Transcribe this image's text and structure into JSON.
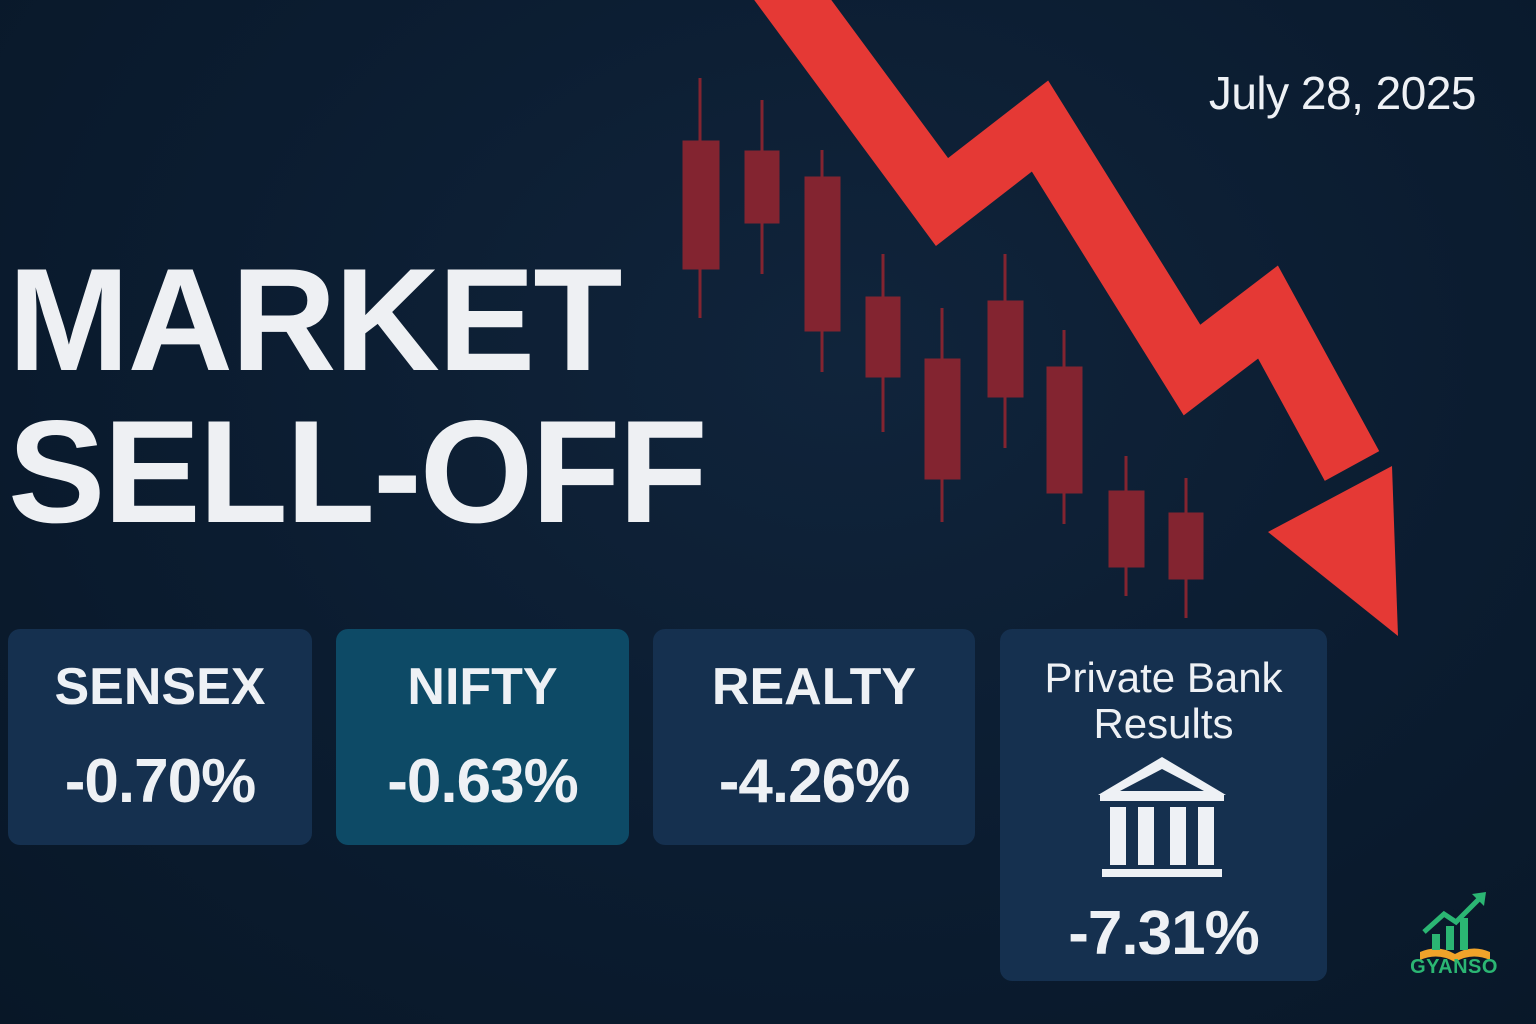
{
  "date": "July 28, 2025",
  "headline": {
    "line1": "MARKET",
    "line2": "SELL-OFF"
  },
  "cards": [
    {
      "label": "SENSEX",
      "value": "-0.70%"
    },
    {
      "label": "NIFTY",
      "value": "-0.63%"
    },
    {
      "label": "REALTY",
      "value": "-4.26%"
    },
    {
      "label_line1": "Private Bank",
      "label_line2": "Results",
      "value": "-7.31%"
    }
  ],
  "logo": {
    "text": "GYANSO"
  },
  "icons": [
    "bank-building-icon",
    "down-arrow-icon",
    "candlestick-chart-icon",
    "growth-book-logo-icon"
  ],
  "colors": {
    "background": "#0b1c30",
    "card": "#15304f",
    "card_highlight": "#0d4a66",
    "arrow": "#e53935",
    "candle": "#8a2530",
    "logo_green": "#2bb673"
  }
}
